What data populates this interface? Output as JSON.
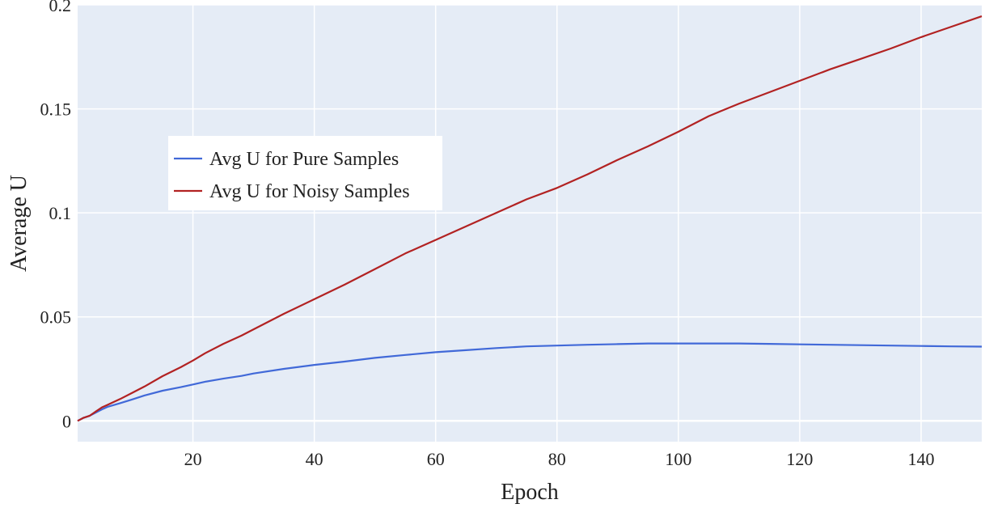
{
  "chart_data": {
    "type": "line",
    "title": "",
    "xlabel": "Epoch",
    "ylabel": "Average  U",
    "xlim": [
      1,
      150
    ],
    "ylim": [
      -0.01,
      0.2
    ],
    "x_ticks": [
      20,
      40,
      60,
      80,
      100,
      120,
      140
    ],
    "x_tick_labels": [
      "20",
      "40",
      "60",
      "80",
      "100",
      "120",
      "140"
    ],
    "y_ticks": [
      0,
      0.05,
      0.1,
      0.15,
      0.2
    ],
    "y_tick_labels": [
      "0",
      "0.05",
      "0.1",
      "0.15",
      "0.2"
    ],
    "grid": true,
    "legend_position": "upper-left-center",
    "background_color": "#e5ecf6",
    "series": [
      {
        "name": "Avg U for Pure Samples",
        "color": "#4169d8",
        "x": [
          1,
          2,
          3,
          4,
          5,
          6,
          8,
          10,
          12,
          15,
          18,
          20,
          22,
          25,
          28,
          30,
          35,
          40,
          45,
          50,
          55,
          60,
          65,
          70,
          75,
          80,
          85,
          90,
          95,
          100,
          105,
          110,
          115,
          120,
          125,
          130,
          135,
          140,
          145,
          150
        ],
        "y": [
          0.0,
          0.0015,
          0.0025,
          0.004,
          0.0055,
          0.0068,
          0.0085,
          0.0103,
          0.0122,
          0.0145,
          0.0162,
          0.0175,
          0.0188,
          0.0203,
          0.0216,
          0.0228,
          0.025,
          0.0269,
          0.0285,
          0.0303,
          0.0317,
          0.033,
          0.034,
          0.035,
          0.0358,
          0.0362,
          0.0366,
          0.0369,
          0.0372,
          0.0372,
          0.0372,
          0.0372,
          0.037,
          0.0368,
          0.0366,
          0.0364,
          0.0362,
          0.036,
          0.0358,
          0.0357
        ]
      },
      {
        "name": "Avg U for Noisy Samples",
        "color": "#b22222",
        "x": [
          1,
          2,
          3,
          4,
          5,
          6,
          8,
          10,
          12,
          15,
          18,
          20,
          22,
          25,
          28,
          30,
          35,
          40,
          45,
          50,
          55,
          60,
          65,
          70,
          75,
          80,
          85,
          90,
          95,
          100,
          105,
          110,
          115,
          120,
          125,
          130,
          135,
          140,
          145,
          150
        ],
        "y": [
          0.0,
          0.0015,
          0.0025,
          0.0045,
          0.0065,
          0.0078,
          0.0105,
          0.0135,
          0.0165,
          0.0215,
          0.0258,
          0.029,
          0.0325,
          0.037,
          0.041,
          0.044,
          0.0515,
          0.0585,
          0.0655,
          0.073,
          0.0805,
          0.087,
          0.0935,
          0.1,
          0.1065,
          0.112,
          0.1185,
          0.1255,
          0.132,
          0.139,
          0.1465,
          0.1525,
          0.158,
          0.1635,
          0.169,
          0.174,
          0.179,
          0.1845,
          0.1895,
          0.1945
        ]
      }
    ]
  }
}
